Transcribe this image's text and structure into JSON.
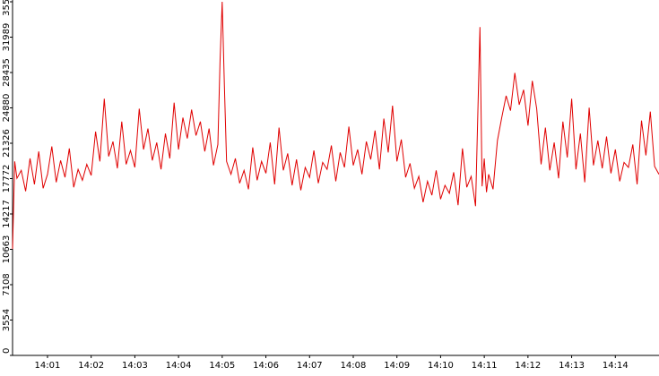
{
  "colors": {
    "line": "#e00000",
    "axis": "#000000",
    "background": "#ffffff"
  },
  "chart_data": {
    "type": "line",
    "title": "",
    "xlabel": "",
    "ylabel": "",
    "grid": false,
    "legend": "none",
    "ylim": [
      0,
      35544
    ],
    "y_ticks": [
      0,
      3554,
      7108,
      10663,
      14217,
      17772,
      21326,
      24880,
      28435,
      31989,
      35544
    ],
    "y_tick_labels": [
      "0",
      "3554",
      "7108",
      "10663",
      "14217",
      "17772",
      "21326",
      "24880",
      "28435",
      "31989",
      "35544"
    ],
    "x_unit": "minutes after 14:00",
    "xlim": [
      0.2,
      15.0
    ],
    "x_ticks": [
      1,
      2,
      3,
      4,
      5,
      6,
      7,
      8,
      9,
      10,
      11,
      12,
      13,
      14
    ],
    "x_tick_labels": [
      "14:01",
      "14:02",
      "14:03",
      "14:04",
      "14:05",
      "14:06",
      "14:07",
      "14:08",
      "14:09",
      "14:10",
      "14:11",
      "14:12",
      "14:13",
      "14:14"
    ],
    "series": [
      {
        "name": "",
        "x": [
          0.2,
          0.25,
          0.3,
          0.4,
          0.5,
          0.6,
          0.7,
          0.8,
          0.9,
          1.0,
          1.1,
          1.2,
          1.3,
          1.4,
          1.5,
          1.6,
          1.7,
          1.8,
          1.9,
          2.0,
          2.1,
          2.2,
          2.3,
          2.4,
          2.5,
          2.6,
          2.7,
          2.8,
          2.9,
          3.0,
          3.1,
          3.2,
          3.3,
          3.4,
          3.5,
          3.6,
          3.7,
          3.8,
          3.9,
          4.0,
          4.1,
          4.2,
          4.3,
          4.4,
          4.5,
          4.6,
          4.7,
          4.8,
          4.9,
          4.95,
          5.0,
          5.05,
          5.1,
          5.2,
          5.3,
          5.4,
          5.5,
          5.6,
          5.7,
          5.8,
          5.9,
          6.0,
          6.1,
          6.2,
          6.3,
          6.4,
          6.5,
          6.6,
          6.7,
          6.8,
          6.9,
          7.0,
          7.1,
          7.2,
          7.3,
          7.4,
          7.5,
          7.6,
          7.7,
          7.8,
          7.9,
          8.0,
          8.1,
          8.2,
          8.3,
          8.4,
          8.5,
          8.6,
          8.7,
          8.8,
          8.9,
          9.0,
          9.1,
          9.2,
          9.3,
          9.4,
          9.5,
          9.6,
          9.7,
          9.8,
          9.9,
          10.0,
          10.1,
          10.2,
          10.3,
          10.4,
          10.5,
          10.6,
          10.7,
          10.8,
          10.9,
          10.95,
          11.0,
          11.05,
          11.1,
          11.2,
          11.3,
          11.4,
          11.5,
          11.6,
          11.7,
          11.8,
          11.9,
          12.0,
          12.1,
          12.2,
          12.3,
          12.4,
          12.5,
          12.6,
          12.7,
          12.8,
          12.9,
          13.0,
          13.1,
          13.2,
          13.3,
          13.4,
          13.5,
          13.6,
          13.7,
          13.8,
          13.9,
          14.0,
          14.1,
          14.2,
          14.3,
          14.4,
          14.5,
          14.6,
          14.7,
          14.8,
          14.9,
          15.0
        ],
        "y": [
          10700,
          19500,
          17800,
          18600,
          16500,
          19800,
          17200,
          20500,
          16800,
          18200,
          21000,
          17400,
          19600,
          17900,
          20800,
          16900,
          18700,
          17600,
          19200,
          18100,
          22500,
          19500,
          25800,
          20000,
          21500,
          18800,
          23500,
          19200,
          20600,
          18900,
          24800,
          20700,
          22800,
          19600,
          21400,
          18700,
          22300,
          19800,
          25400,
          20700,
          23900,
          21800,
          24700,
          22100,
          23500,
          20500,
          22800,
          19100,
          21200,
          29500,
          35544,
          27000,
          19500,
          18200,
          19800,
          17300,
          18600,
          16700,
          20900,
          17600,
          19500,
          18300,
          21400,
          17200,
          22900,
          18600,
          20300,
          17100,
          19700,
          16600,
          18900,
          17900,
          20600,
          17300,
          19400,
          18700,
          21100,
          17500,
          20400,
          18900,
          23000,
          19100,
          20700,
          18200,
          21500,
          19700,
          22600,
          18700,
          23800,
          20400,
          25100,
          19500,
          21700,
          17900,
          19300,
          16800,
          18000,
          15400,
          17500,
          16100,
          18600,
          15700,
          17100,
          16300,
          18400,
          15100,
          20800,
          16900,
          18000,
          15000,
          33000,
          17000,
          19800,
          16400,
          18200,
          16700,
          21600,
          23900,
          26100,
          24600,
          28400,
          25200,
          26700,
          23100,
          27600,
          24800,
          19200,
          22900,
          18600,
          21400,
          17800,
          23500,
          19900,
          25800,
          18700,
          22300,
          17400,
          24900,
          19100,
          21600,
          18800,
          22000,
          18300,
          20700,
          17500,
          19400,
          18900,
          21200,
          17200,
          23600,
          20100,
          24500,
          19000,
          18200
        ]
      }
    ]
  }
}
